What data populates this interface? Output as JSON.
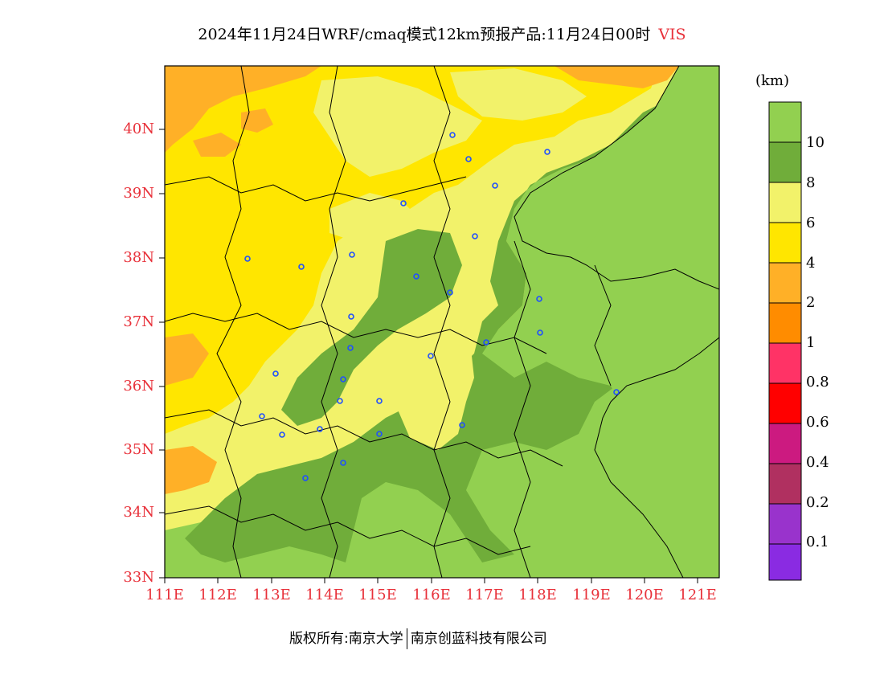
{
  "title": {
    "text": "2024年11月24日WRF/cmaq模式12km预报产品:11月24日00时",
    "variable": "VIS"
  },
  "axes": {
    "lat_labels": [
      "40N",
      "39N",
      "38N",
      "37N",
      "36N",
      "35N",
      "34N",
      "33N"
    ],
    "lon_labels": [
      "111E",
      "112E",
      "113E",
      "114E",
      "115E",
      "116E",
      "117E",
      "118E",
      "119E",
      "120E",
      "121E"
    ]
  },
  "colorbar": {
    "unit": "(km)",
    "levels": [
      "10",
      "8",
      "6",
      "4",
      "2",
      "1",
      "0.8",
      "0.6",
      "0.4",
      "0.2",
      "0.1"
    ],
    "colors": [
      "#92d050",
      "#70ad3a",
      "#f2f26a",
      "#ffe600",
      "#ffb027",
      "#ff8c00",
      "#ff3366",
      "#ff0000",
      "#cc1a80",
      "#b03060",
      "#9933cc",
      "#8a2be2"
    ]
  },
  "footer": {
    "left": "版权所有:南京大学",
    "right": "南京创蓝科技有限公司"
  },
  "colors": {
    "label_red": "#e8313a",
    "marker_blue": "#1f4fff"
  }
}
